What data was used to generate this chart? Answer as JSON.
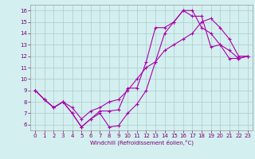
{
  "xlabel": "Windchill (Refroidissement éolien,°C)",
  "line_color": "#aa00aa",
  "background_color": "#d4efef",
  "grid_color": "#aacccc",
  "xlim": [
    -0.5,
    23.5
  ],
  "ylim": [
    5.5,
    16.5
  ],
  "xticks": [
    0,
    1,
    2,
    3,
    4,
    5,
    6,
    7,
    8,
    9,
    10,
    11,
    12,
    13,
    14,
    15,
    16,
    17,
    18,
    19,
    20,
    21,
    22,
    23
  ],
  "yticks": [
    6,
    7,
    8,
    9,
    10,
    11,
    12,
    13,
    14,
    15,
    16
  ],
  "series": [
    {
      "x": [
        0,
        1,
        2,
        3,
        4,
        5,
        6,
        7,
        8,
        9,
        10,
        11,
        12,
        13,
        14,
        15,
        16,
        17,
        18,
        19,
        20,
        21,
        22,
        23
      ],
      "y": [
        9,
        8.2,
        7.5,
        8.0,
        7.0,
        5.8,
        6.5,
        7.0,
        5.8,
        5.9,
        7.0,
        7.8,
        9.0,
        11.5,
        14.0,
        15.0,
        16.0,
        16.0,
        14.5,
        14.0,
        13.0,
        11.8,
        11.8,
        12.0
      ]
    },
    {
      "x": [
        0,
        1,
        2,
        3,
        4,
        5,
        6,
        7,
        8,
        9,
        10,
        11,
        12,
        13,
        14,
        15,
        16,
        17,
        18,
        19,
        20,
        21,
        22,
        23
      ],
      "y": [
        9,
        8.2,
        7.5,
        8.0,
        7.0,
        5.8,
        6.5,
        7.2,
        7.2,
        7.3,
        9.2,
        9.2,
        11.5,
        14.5,
        14.5,
        15.0,
        16.0,
        15.5,
        15.5,
        12.8,
        13.0,
        12.5,
        11.8,
        12.0
      ]
    },
    {
      "x": [
        0,
        1,
        2,
        3,
        4,
        5,
        6,
        7,
        8,
        9,
        10,
        11,
        12,
        13,
        14,
        15,
        16,
        17,
        18,
        19,
        20,
        21,
        22,
        23
      ],
      "y": [
        9,
        8.2,
        7.5,
        8.0,
        7.5,
        6.5,
        7.2,
        7.5,
        8.0,
        8.2,
        9.0,
        10.0,
        11.0,
        11.5,
        12.5,
        13.0,
        13.5,
        14.0,
        15.0,
        15.3,
        14.5,
        13.5,
        12.0,
        12.0
      ]
    }
  ],
  "xlabel_fontsize": 5,
  "tick_fontsize": 5,
  "tick_color": "#770077",
  "spine_color": "#999999"
}
